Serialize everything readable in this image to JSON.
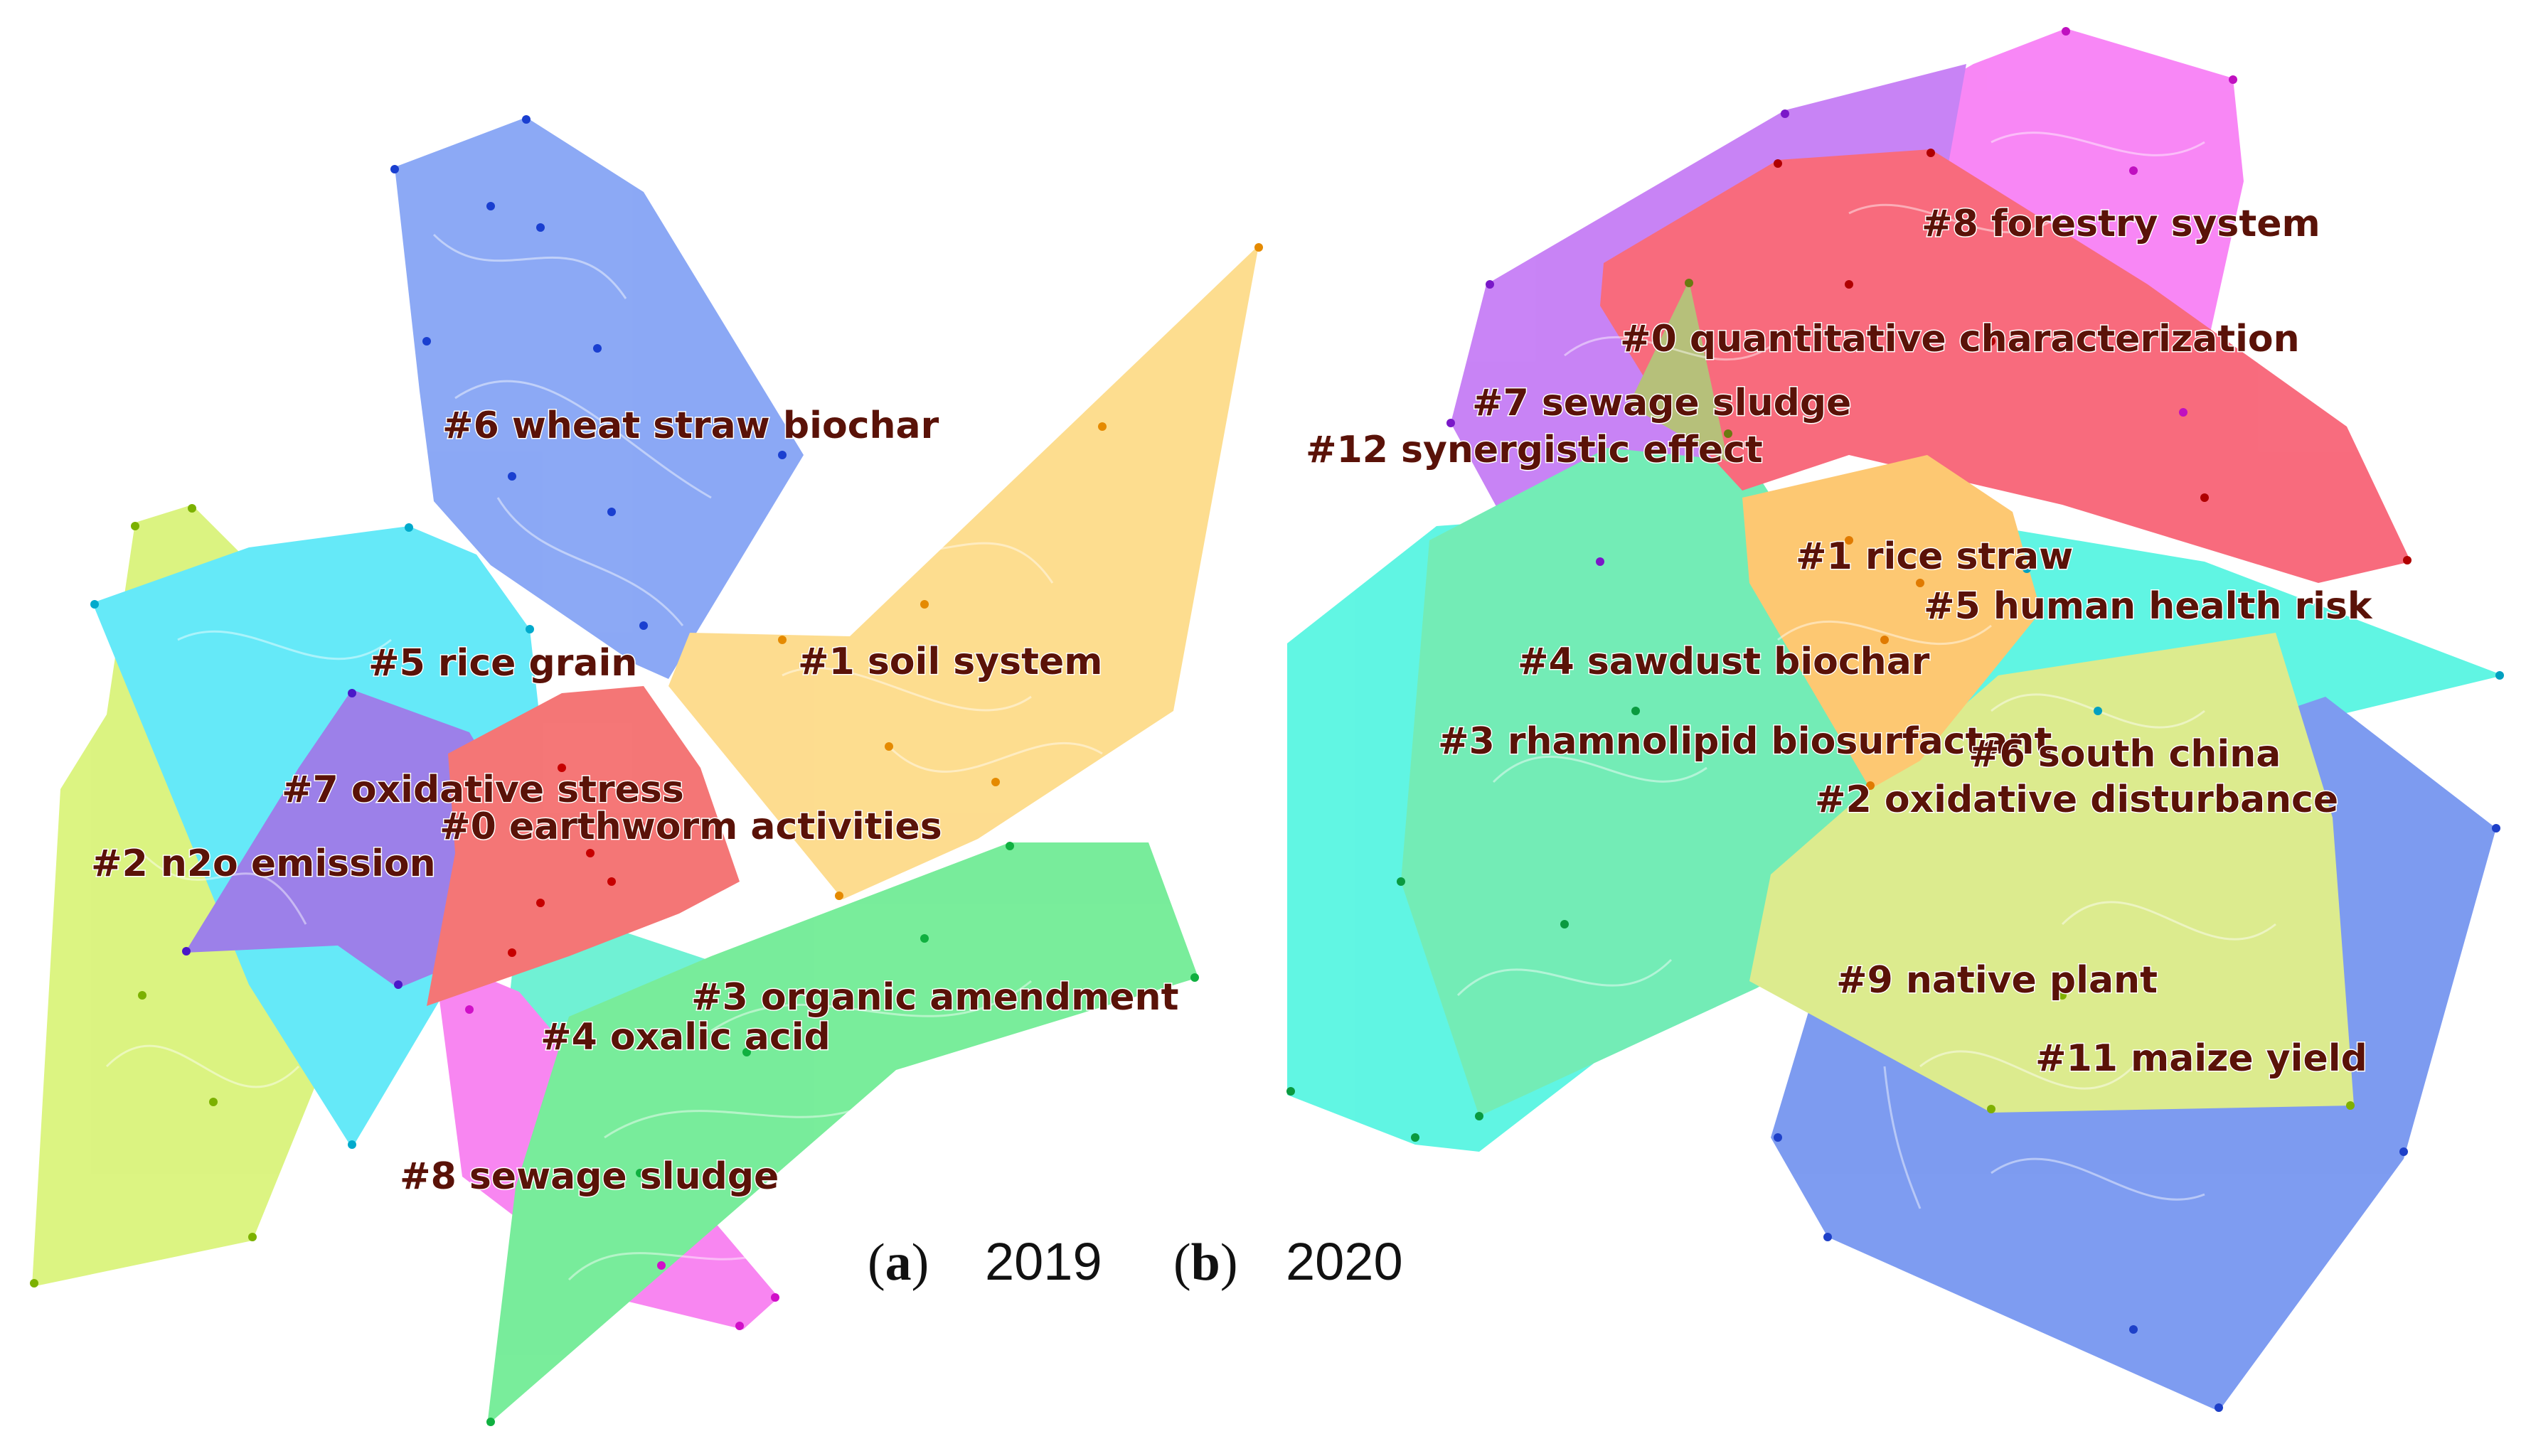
{
  "panels": [
    {
      "id": "a",
      "year": "2019",
      "clusters": [
        {
          "label": "#6 wheat straw biochar",
          "color": "#3f6fef"
        },
        {
          "label": "#1 soil system",
          "color": "#fcc645"
        },
        {
          "label": "#5 rice grain",
          "color": "#00dcf5"
        },
        {
          "label": "#7 oxidative stress",
          "color": "#5b2cdb"
        },
        {
          "label": "#0 earthworm activities",
          "color": "#ee1c1c"
        },
        {
          "label": "#2 n2o emission",
          "color": "#c4ec2e"
        },
        {
          "label": "#3 organic amendment",
          "color": "#1fe159"
        },
        {
          "label": "#4 oxalic acid",
          "color": "#12e8b8"
        },
        {
          "label": "#8 sewage sludge",
          "color": "#f536e8"
        }
      ]
    },
    {
      "id": "b",
      "year": "2020",
      "clusters": [
        {
          "label": "#8 forestry system",
          "color": "#f43ef0"
        },
        {
          "label": "#0 quantitative characterization",
          "color": "#f4122f"
        },
        {
          "label": "#7 sewage sludge",
          "color": "#a838f0"
        },
        {
          "label": "#12 synergistic effect",
          "color": "#8a9a2a"
        },
        {
          "label": "#1 rice straw",
          "color": "#fca81c"
        },
        {
          "label": "#5 human health risk",
          "color": "#00cfe8"
        },
        {
          "label": "#4 sawdust biochar",
          "color": "#1fe28a"
        },
        {
          "label": "#3 rhamnolipid biosurfactant",
          "color": "#00e23b"
        },
        {
          "label": "#6 south china",
          "color": "#2f5fe8"
        },
        {
          "label": "#2 oxidative disturbance",
          "color": "#00f0d2"
        },
        {
          "label": "#9 native plant",
          "color": "#b7e96a"
        },
        {
          "label": "#11 maize yield",
          "color": "#c8e04a"
        }
      ]
    }
  ]
}
